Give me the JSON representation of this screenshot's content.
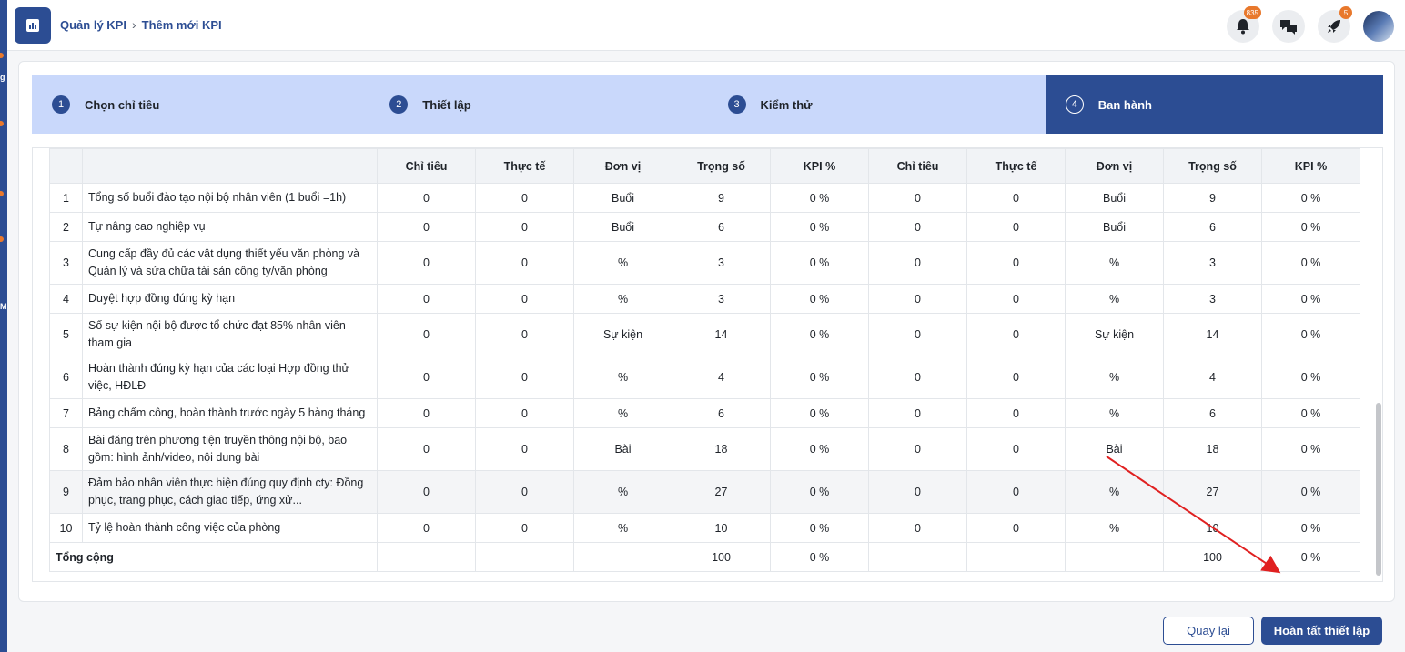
{
  "sidebar": {
    "rail_letters": [
      "g",
      "M"
    ]
  },
  "header": {
    "breadcrumb": [
      "Quản lý KPI",
      "Thêm mới KPI"
    ],
    "icons": [
      {
        "name": "notification-bell-icon",
        "badge": "835"
      },
      {
        "name": "chat-icon",
        "badge": ""
      },
      {
        "name": "rocket-icon",
        "badge": "5"
      }
    ]
  },
  "steps": [
    {
      "num": "1",
      "label": "Chọn chỉ tiêu",
      "active": false
    },
    {
      "num": "2",
      "label": "Thiết lập",
      "active": false
    },
    {
      "num": "3",
      "label": "Kiểm thử",
      "active": false
    },
    {
      "num": "4",
      "label": "Ban hành",
      "active": true
    }
  ],
  "table": {
    "columns": [
      "Chỉ tiêu",
      "Thực tế",
      "Đơn vị",
      "Trọng số",
      "KPI %",
      "Chỉ tiêu",
      "Thực tế",
      "Đơn vị",
      "Trọng số",
      "KPI %"
    ],
    "rows": [
      {
        "idx": "1",
        "name": "Tổng số buổi đào tạo nội bộ nhân viên (1 buổi =1h)",
        "cells": [
          "0",
          "0",
          "Buổi",
          "9",
          "0 %",
          "0",
          "0",
          "Buổi",
          "9",
          "0 %"
        ]
      },
      {
        "idx": "2",
        "name": "Tự nâng cao nghiệp vụ",
        "cells": [
          "0",
          "0",
          "Buổi",
          "6",
          "0 %",
          "0",
          "0",
          "Buổi",
          "6",
          "0 %"
        ]
      },
      {
        "idx": "3",
        "name": "Cung cấp đầy đủ các vật dụng thiết yếu văn phòng và Quản lý và sửa chữa tài sản công ty/văn phòng",
        "cells": [
          "0",
          "0",
          "%",
          "3",
          "0 %",
          "0",
          "0",
          "%",
          "3",
          "0 %"
        ]
      },
      {
        "idx": "4",
        "name": "Duyệt hợp đồng đúng kỳ hạn",
        "cells": [
          "0",
          "0",
          "%",
          "3",
          "0 %",
          "0",
          "0",
          "%",
          "3",
          "0 %"
        ]
      },
      {
        "idx": "5",
        "name": "Số sự kiện nội bộ được tổ chức đạt 85% nhân viên tham gia",
        "cells": [
          "0",
          "0",
          "Sự kiện",
          "14",
          "0 %",
          "0",
          "0",
          "Sự kiện",
          "14",
          "0 %"
        ]
      },
      {
        "idx": "6",
        "name": "Hoàn thành đúng kỳ hạn của các loại Hợp đồng thử việc, HĐLĐ",
        "cells": [
          "0",
          "0",
          "%",
          "4",
          "0 %",
          "0",
          "0",
          "%",
          "4",
          "0 %"
        ]
      },
      {
        "idx": "7",
        "name": "Bảng chấm công, hoàn thành trước ngày 5 hàng tháng",
        "cells": [
          "0",
          "0",
          "%",
          "6",
          "0 %",
          "0",
          "0",
          "%",
          "6",
          "0 %"
        ]
      },
      {
        "idx": "8",
        "name": "Bài đăng trên phương tiện truyền thông nội bộ, bao gồm: hình ảnh/video, nội dung bài",
        "cells": [
          "0",
          "0",
          "Bài",
          "18",
          "0 %",
          "0",
          "0",
          "Bài",
          "18",
          "0 %"
        ]
      },
      {
        "idx": "9",
        "name": "Đảm bảo nhân viên thực hiện đúng quy định cty: Đồng phục, trang phục, cách giao tiếp, ứng xử...",
        "cells": [
          "0",
          "0",
          "%",
          "27",
          "0 %",
          "0",
          "0",
          "%",
          "27",
          "0 %"
        ]
      },
      {
        "idx": "10",
        "name": "Tỷ lệ hoàn thành công việc của phòng",
        "cells": [
          "0",
          "0",
          "%",
          "10",
          "0 %",
          "0",
          "0",
          "%",
          "10",
          "0 %"
        ]
      }
    ],
    "total": {
      "label": "Tổng cộng",
      "cells": [
        "",
        "",
        "",
        "100",
        "0 %",
        "",
        "",
        "",
        "100",
        "0 %"
      ]
    }
  },
  "buttons": {
    "back": "Quay lại",
    "finish": "Hoàn tất thiết lập"
  },
  "colors": {
    "primary": "#2c4d93",
    "step_inactive": "#c9d8fb",
    "badge": "#e8782c",
    "arrow": "#e02020"
  }
}
